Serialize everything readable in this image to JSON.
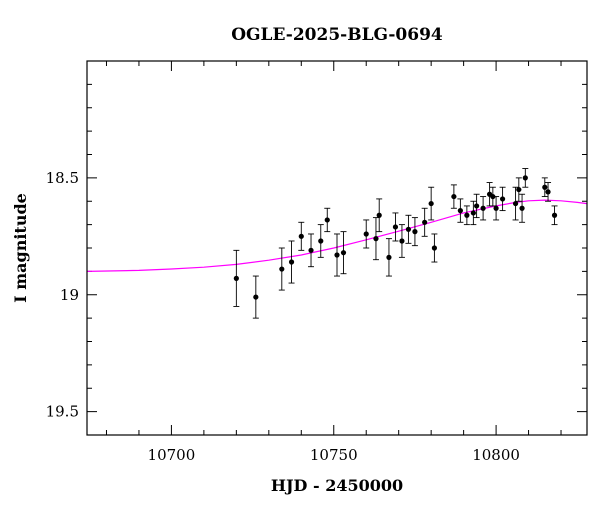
{
  "chart_data": {
    "type": "scatter",
    "title": "OGLE-2025-BLG-0694",
    "xlabel": "HJD - 2450000",
    "ylabel": "I magnitude",
    "xlim": [
      10674,
      10828
    ],
    "ylim": [
      18.0,
      19.6
    ],
    "y_inverted": true,
    "x_ticks": [
      10700,
      10750,
      10800
    ],
    "x_tick_labels": [
      "10700",
      "10750",
      "10800"
    ],
    "y_ticks": [
      18.5,
      19.0,
      19.5
    ],
    "y_tick_labels": [
      "18.5",
      "19",
      "19.5"
    ],
    "grid": false,
    "legend": "none",
    "colors": {
      "data": "#000000",
      "model": "#ff00ff"
    },
    "series": [
      {
        "kind": "points",
        "x": [
          10720,
          10726,
          10734,
          10737,
          10740,
          10743,
          10746,
          10748,
          10751,
          10753,
          10760,
          10763,
          10764,
          10767,
          10769,
          10771,
          10773,
          10775,
          10778,
          10780,
          10781,
          10787,
          10789,
          10791,
          10793,
          10794,
          10796,
          10798,
          10799,
          10800,
          10802,
          10806,
          10807,
          10808,
          10809,
          10815,
          10816,
          10818
        ],
        "y": [
          18.93,
          19.01,
          18.89,
          18.86,
          18.75,
          18.81,
          18.77,
          18.68,
          18.83,
          18.82,
          18.74,
          18.76,
          18.66,
          18.84,
          18.71,
          18.77,
          18.72,
          18.73,
          18.69,
          18.61,
          18.8,
          18.58,
          18.64,
          18.66,
          18.65,
          18.62,
          18.63,
          18.57,
          18.58,
          18.63,
          18.59,
          18.61,
          18.55,
          18.63,
          18.5,
          18.54,
          18.56,
          18.66
        ],
        "yerr": [
          0.12,
          0.09,
          0.09,
          0.09,
          0.06,
          0.07,
          0.07,
          0.05,
          0.09,
          0.09,
          0.06,
          0.09,
          0.07,
          0.08,
          0.06,
          0.07,
          0.06,
          0.06,
          0.06,
          0.07,
          0.06,
          0.05,
          0.05,
          0.04,
          0.05,
          0.05,
          0.05,
          0.05,
          0.04,
          0.05,
          0.05,
          0.07,
          0.05,
          0.06,
          0.04,
          0.04,
          0.04,
          0.04
        ]
      },
      {
        "kind": "model",
        "x": [
          10674,
          10690,
          10700,
          10710,
          10720,
          10730,
          10740,
          10750,
          10760,
          10770,
          10780,
          10790,
          10800,
          10806,
          10810,
          10815,
          10820,
          10825,
          10828
        ],
        "y": [
          18.9,
          18.896,
          18.89,
          18.882,
          18.87,
          18.852,
          18.83,
          18.8,
          18.765,
          18.728,
          18.69,
          18.65,
          18.62,
          18.605,
          18.598,
          18.595,
          18.598,
          18.605,
          18.61
        ]
      }
    ]
  }
}
